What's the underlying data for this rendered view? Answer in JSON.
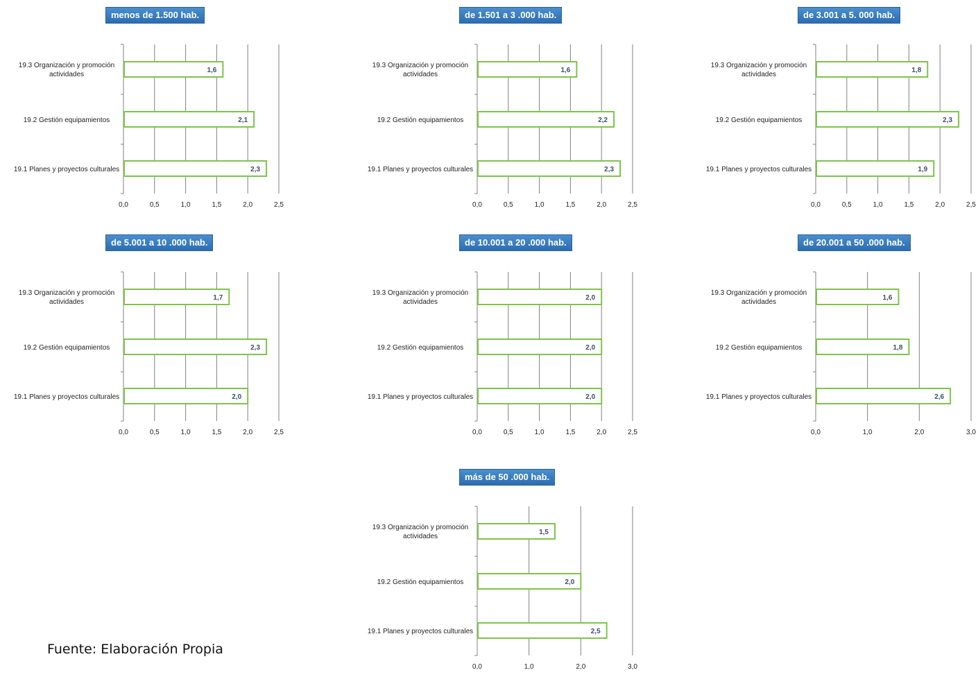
{
  "footer": "Fuente: Elaboración Propia",
  "colors": {
    "bar_border": "#7ec34a",
    "value_label": "#3d4e66",
    "grid": "#808080",
    "title_bg": "#3a7fc4"
  },
  "chart_data": [
    {
      "type": "bar",
      "orientation": "horizontal",
      "title": "menos de 1.500  hab.",
      "categories": [
        "19.3 Organización y promoción actividades",
        "19.2 Gestión equipamientos",
        "19.1 Planes y proyectos culturales"
      ],
      "values": [
        1.6,
        2.1,
        2.3
      ],
      "value_labels": [
        "1,6",
        "2,1",
        "2,3"
      ],
      "xlim": [
        0,
        2.5
      ],
      "ticks": [
        "0,0",
        "0,5",
        "1,0",
        "1,5",
        "2,0",
        "2,5"
      ]
    },
    {
      "type": "bar",
      "orientation": "horizontal",
      "title": "de 1.501 a 3 .000 hab.",
      "categories": [
        "19.3 Organización y promoción actividades",
        "19.2 Gestión equipamientos",
        "19.1 Planes y proyectos culturales"
      ],
      "values": [
        1.6,
        2.2,
        2.3
      ],
      "value_labels": [
        "1,6",
        "2,2",
        "2,3"
      ],
      "xlim": [
        0,
        2.5
      ],
      "ticks": [
        "0,0",
        "0,5",
        "1,0",
        "1,5",
        "2,0",
        "2,5"
      ]
    },
    {
      "type": "bar",
      "orientation": "horizontal",
      "title": "de 3.001 a 5. 000 hab.",
      "categories": [
        "19.3 Organización y promoción actividades",
        "19.2 Gestión equipamientos",
        "19.1 Planes y proyectos culturales"
      ],
      "values": [
        1.8,
        2.3,
        1.9
      ],
      "value_labels": [
        "1,8",
        "2,3",
        "1,9"
      ],
      "xlim": [
        0,
        2.5
      ],
      "ticks": [
        "0,0",
        "0,5",
        "1,0",
        "1,5",
        "2,0",
        "2,5"
      ]
    },
    {
      "type": "bar",
      "orientation": "horizontal",
      "title": "de 5.001 a 10 .000 hab.",
      "categories": [
        "19.3 Organización y promoción actividades",
        "19.2 Gestión equipamientos",
        "19.1 Planes y proyectos culturales"
      ],
      "values": [
        1.7,
        2.3,
        2.0
      ],
      "value_labels": [
        "1,7",
        "2,3",
        "2,0"
      ],
      "xlim": [
        0,
        2.5
      ],
      "ticks": [
        "0,0",
        "0,5",
        "1,0",
        "1,5",
        "2,0",
        "2,5"
      ]
    },
    {
      "type": "bar",
      "orientation": "horizontal",
      "title": "de 10.001 a 20 .000 hab.",
      "categories": [
        "19.3 Organización y promoción actividades",
        "19.2 Gestión equipamientos",
        "19.1 Planes y proyectos culturales"
      ],
      "values": [
        2.0,
        2.0,
        2.0
      ],
      "value_labels": [
        "2,0",
        "2,0",
        "2,0"
      ],
      "xlim": [
        0,
        2.5
      ],
      "ticks": [
        "0,0",
        "0,5",
        "1,0",
        "1,5",
        "2,0",
        "2,5"
      ]
    },
    {
      "type": "bar",
      "orientation": "horizontal",
      "title": "de 20.001 a 50 .000 hab.",
      "categories": [
        "19.3 Organización y promoción actividades",
        "19.2 Gestión equipamientos",
        "19.1 Planes y proyectos culturales"
      ],
      "values": [
        1.6,
        1.8,
        2.6
      ],
      "value_labels": [
        "1,6",
        "1,8",
        "2,6"
      ],
      "xlim": [
        0,
        3.0
      ],
      "ticks": [
        "0,0",
        "1,0",
        "2,0",
        "3,0"
      ]
    },
    {
      "type": "bar",
      "orientation": "horizontal",
      "title": "más de 50 .000 hab.",
      "categories": [
        "19.3 Organización y promoción actividades",
        "19.2 Gestión equipamientos",
        "19.1 Planes y proyectos culturales"
      ],
      "values": [
        1.5,
        2.0,
        2.5
      ],
      "value_labels": [
        "1,5",
        "2,0",
        "2,5"
      ],
      "xlim": [
        0,
        3.0
      ],
      "ticks": [
        "0,0",
        "1,0",
        "2,0",
        "3,0"
      ]
    }
  ]
}
